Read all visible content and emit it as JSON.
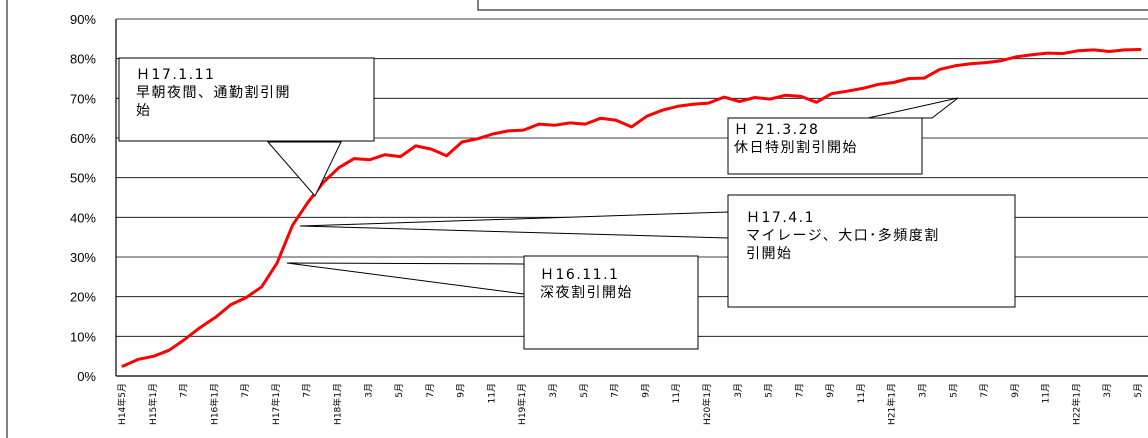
{
  "chart_data": {
    "type": "line",
    "title": "",
    "xlabel": "",
    "ylabel": "",
    "ylim": [
      0,
      90
    ],
    "y_ticks": [
      "0%",
      "10%",
      "20%",
      "30%",
      "40%",
      "50%",
      "60%",
      "70%",
      "80%",
      "90%"
    ],
    "grid": true,
    "x_tick_labels": [
      "H14年5月",
      "H15年1月",
      "7月",
      "H16年1月",
      "7月",
      "H17年1月",
      "7月",
      "H18年1月",
      "3月",
      "5月",
      "7月",
      "9月",
      "11月",
      "H19年1月",
      "3月",
      "5月",
      "7月",
      "9月",
      "11月",
      "H20年1月",
      "3月",
      "5月",
      "7月",
      "9月",
      "11月",
      "H21年1月",
      "3月",
      "5月",
      "7月",
      "9月",
      "11月",
      "H22年1月",
      "3月",
      "5月"
    ],
    "series": [
      {
        "color": "#ff0000",
        "values": [
          2.5,
          4.2,
          5.0,
          6.5,
          9.2,
          12.2,
          14.8,
          18.0,
          19.8,
          22.5,
          28.5,
          38.0,
          43.8,
          48.8,
          52.5,
          54.8,
          54.5,
          55.8,
          55.3,
          58.0,
          57.2,
          55.5,
          59.0,
          59.8,
          61.0,
          61.8,
          62.0,
          63.5,
          63.2,
          63.8,
          63.5,
          65.0,
          64.5,
          62.8,
          65.5,
          67.0,
          68.0,
          68.5,
          68.8,
          70.3,
          69.2,
          70.2,
          69.8,
          70.8,
          70.5,
          69.0,
          71.2,
          71.8,
          72.5,
          73.5,
          74.0,
          75.0,
          75.1,
          77.3,
          78.2,
          78.7,
          79.0,
          79.5,
          80.5,
          81.0,
          81.4,
          81.3,
          82.0,
          82.2,
          81.8,
          82.2,
          82.3
        ]
      }
    ],
    "annotations": [
      {
        "lines": [
          "Ｈ17.1.11",
          "早朝夜間、通勤割引開",
          "始"
        ]
      },
      {
        "lines": [
          "Ｈ 21.3.28",
          "休日特別割引開始"
        ]
      },
      {
        "lines": [
          "Ｈ17.4.1",
          "マイレージ、大口･多頻度割",
          "引開始"
        ]
      },
      {
        "lines": [
          "Ｈ16.11.1",
          "深夜割引開始"
        ]
      }
    ]
  }
}
